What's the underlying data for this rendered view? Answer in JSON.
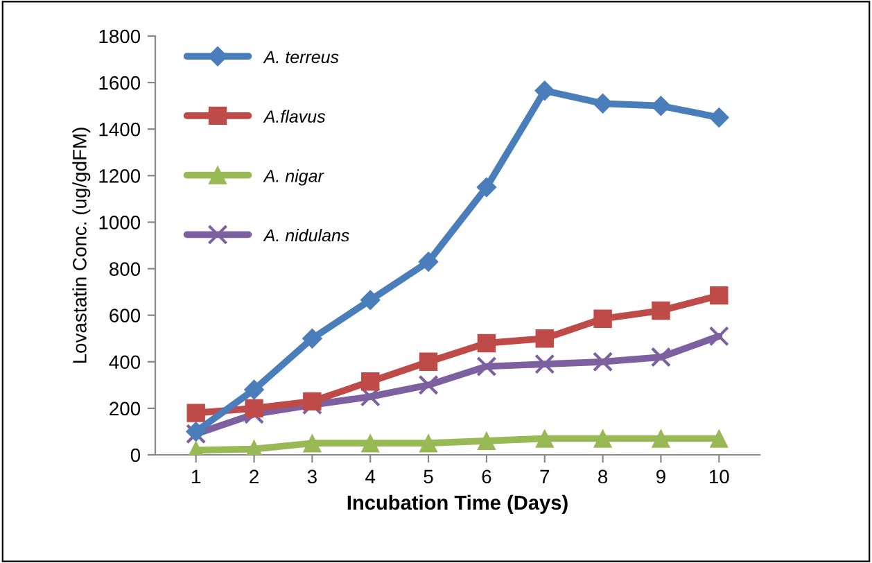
{
  "chart_data": {
    "type": "line",
    "xlabel": "Incubation Time (Days)",
    "ylabel": "Lovastatin Conc. (ug/gdFM)",
    "categories": [
      "1",
      "2",
      "3",
      "4",
      "5",
      "6",
      "7",
      "8",
      "9",
      "10"
    ],
    "ylim": [
      0,
      1800
    ],
    "yticks": [
      0,
      200,
      400,
      600,
      800,
      1000,
      1200,
      1400,
      1600,
      1800
    ],
    "grid": false,
    "legend": "top left",
    "line_style": "solid",
    "series": [
      {
        "name": "A. terreus",
        "color": "#4a7ebb",
        "marker": "diamond",
        "values": [
          100,
          280,
          500,
          665,
          830,
          1150,
          1565,
          1510,
          1500,
          1450
        ]
      },
      {
        "name": "A.flavus",
        "color": "#be4b48",
        "marker": "square",
        "values": [
          180,
          200,
          230,
          315,
          400,
          480,
          500,
          585,
          620,
          685
        ]
      },
      {
        "name": "A. nigar",
        "color": "#98b954",
        "marker": "triangle",
        "values": [
          20,
          25,
          50,
          50,
          50,
          60,
          70,
          70,
          70,
          70
        ]
      },
      {
        "name": "A. nidulans",
        "color": "#7d60a0",
        "marker": "cross",
        "values": [
          90,
          175,
          215,
          250,
          300,
          380,
          390,
          400,
          420,
          510
        ]
      }
    ]
  }
}
